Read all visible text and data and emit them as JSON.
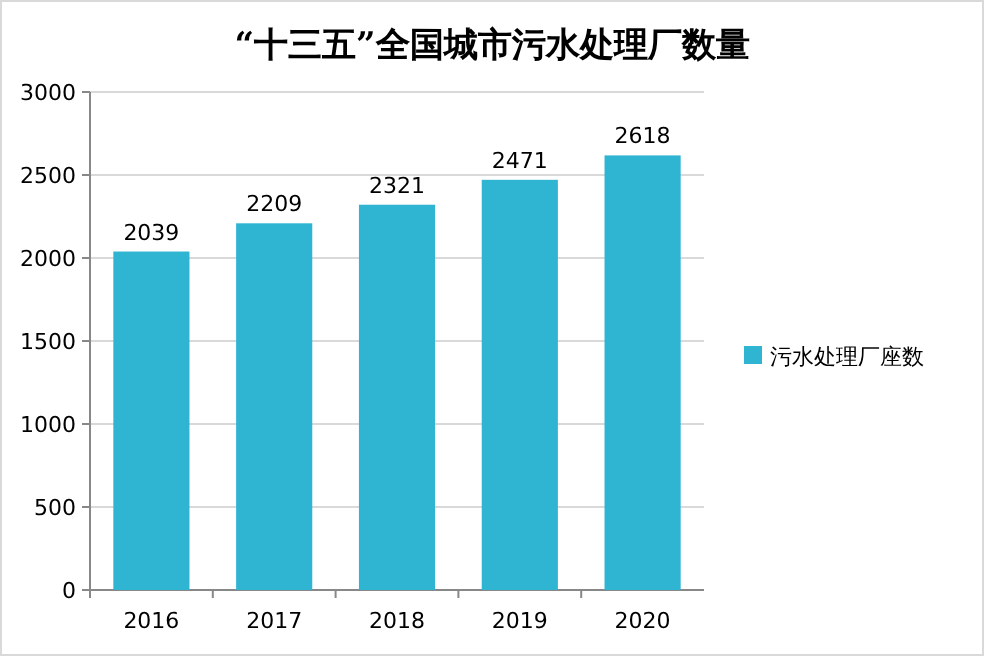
{
  "chart_data": {
    "type": "bar",
    "title": "“十三五”全国城市污水处理厂数量",
    "categories": [
      "2016",
      "2017",
      "2018",
      "2019",
      "2020"
    ],
    "series": [
      {
        "name": "污水处理厂座数",
        "color": "#2fb4d2",
        "values": [
          2039,
          2209,
          2321,
          2471,
          2618
        ]
      }
    ],
    "ylim": [
      0,
      3000
    ],
    "yticks": [
      0,
      500,
      1000,
      1500,
      2000,
      2500,
      3000
    ],
    "grid": "y",
    "legend": "right",
    "data_labels": true
  }
}
